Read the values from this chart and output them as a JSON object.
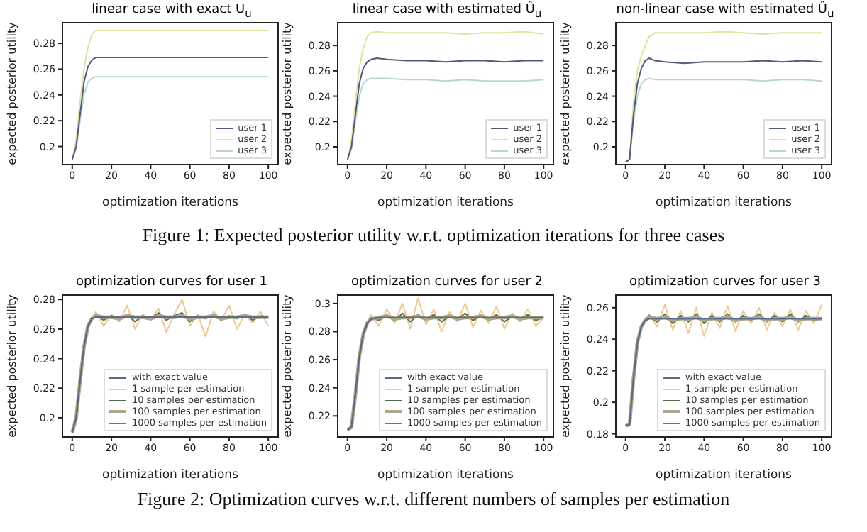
{
  "chart_data": [
    {
      "type": "line",
      "title": "linear case with exact U$_{u}$",
      "xlabel": "optimization iterations",
      "ylabel": "expected posterior utility",
      "x": [
        0,
        2,
        4,
        6,
        8,
        10,
        12,
        15,
        20,
        30,
        40,
        50,
        60,
        70,
        80,
        90,
        100
      ],
      "xlim": [
        -5,
        105
      ],
      "xticks": [
        0,
        20,
        40,
        60,
        80,
        100
      ],
      "ylim": [
        0.186,
        0.296
      ],
      "yticks": [
        0.2,
        0.22,
        0.24,
        0.26,
        0.28
      ],
      "legend": "bottom right",
      "grid": false,
      "marker": "none",
      "line_style": "solid",
      "series": [
        {
          "name": "user 1",
          "color": "#4f5a7e",
          "values": [
            0.19,
            0.2,
            0.225,
            0.25,
            0.262,
            0.267,
            0.269,
            0.269,
            0.269,
            0.269,
            0.269,
            0.269,
            0.269,
            0.269,
            0.269,
            0.269,
            0.269
          ]
        },
        {
          "name": "user 2",
          "color": "#e4e0a0",
          "values": [
            0.19,
            0.205,
            0.235,
            0.26,
            0.277,
            0.287,
            0.29,
            0.29,
            0.29,
            0.29,
            0.29,
            0.29,
            0.29,
            0.29,
            0.29,
            0.29,
            0.29
          ]
        },
        {
          "name": "user 3",
          "color": "#b9d6cf",
          "values": [
            0.19,
            0.198,
            0.22,
            0.24,
            0.25,
            0.253,
            0.254,
            0.254,
            0.254,
            0.254,
            0.254,
            0.254,
            0.254,
            0.254,
            0.254,
            0.254,
            0.254
          ]
        }
      ]
    },
    {
      "type": "line",
      "title": "linear case with estimated Û$_{u}$",
      "xlabel": "optimization iterations",
      "ylabel": "expected posterior utility",
      "x": [
        0,
        2,
        4,
        6,
        8,
        10,
        12,
        15,
        20,
        30,
        40,
        50,
        60,
        70,
        80,
        90,
        100
      ],
      "xlim": [
        -5,
        105
      ],
      "xticks": [
        0,
        20,
        40,
        60,
        80,
        100
      ],
      "ylim": [
        0.186,
        0.298
      ],
      "yticks": [
        0.2,
        0.22,
        0.24,
        0.26,
        0.28
      ],
      "legend": "bottom right",
      "grid": false,
      "marker": "none",
      "line_style": "solid",
      "annotations": [
        "Figure 1: Expected posterior utility w.r.t. optimization iterations for three cases"
      ],
      "series": [
        {
          "name": "user 1",
          "color": "#4f5a7e",
          "values": [
            0.19,
            0.2,
            0.225,
            0.25,
            0.262,
            0.267,
            0.269,
            0.27,
            0.269,
            0.268,
            0.268,
            0.267,
            0.268,
            0.268,
            0.267,
            0.268,
            0.268
          ]
        },
        {
          "name": "user 2",
          "color": "#e4e0a0",
          "values": [
            0.19,
            0.205,
            0.235,
            0.262,
            0.278,
            0.287,
            0.29,
            0.291,
            0.29,
            0.29,
            0.29,
            0.29,
            0.289,
            0.29,
            0.29,
            0.291,
            0.289
          ]
        },
        {
          "name": "user 3",
          "color": "#b9d6cf",
          "values": [
            0.19,
            0.198,
            0.22,
            0.24,
            0.25,
            0.253,
            0.254,
            0.254,
            0.254,
            0.253,
            0.253,
            0.252,
            0.253,
            0.252,
            0.252,
            0.252,
            0.253
          ]
        }
      ]
    },
    {
      "type": "line",
      "title": "non-linear case with estimated Û$_{u}$",
      "xlabel": "optimization iterations",
      "ylabel": "expected posterior utility",
      "x": [
        0,
        2,
        4,
        6,
        8,
        10,
        12,
        15,
        20,
        30,
        40,
        50,
        60,
        70,
        80,
        90,
        100
      ],
      "xlim": [
        -5,
        105
      ],
      "xticks": [
        0,
        20,
        40,
        60,
        80,
        100
      ],
      "ylim": [
        0.186,
        0.298
      ],
      "yticks": [
        0.2,
        0.22,
        0.24,
        0.26,
        0.28
      ],
      "legend": "bottom right",
      "grid": false,
      "marker": "none",
      "line_style": "solid",
      "series": [
        {
          "name": "user 1",
          "color": "#4f5a7e",
          "values": [
            0.188,
            0.19,
            0.225,
            0.25,
            0.262,
            0.268,
            0.27,
            0.268,
            0.267,
            0.266,
            0.267,
            0.267,
            0.267,
            0.268,
            0.267,
            0.268,
            0.267
          ]
        },
        {
          "name": "user 2",
          "color": "#e4e0a0",
          "values": [
            0.188,
            0.19,
            0.235,
            0.26,
            0.272,
            0.28,
            0.287,
            0.29,
            0.29,
            0.29,
            0.29,
            0.291,
            0.29,
            0.289,
            0.29,
            0.29,
            0.29
          ]
        },
        {
          "name": "user 3",
          "color": "#b9d6cf",
          "values": [
            0.188,
            0.19,
            0.22,
            0.24,
            0.25,
            0.253,
            0.254,
            0.253,
            0.253,
            0.253,
            0.253,
            0.253,
            0.253,
            0.252,
            0.253,
            0.253,
            0.252
          ]
        }
      ]
    },
    {
      "type": "line",
      "title": "optimization curves for user 1",
      "xlabel": "optimization iterations",
      "ylabel": "expected posterior utility",
      "x": [
        0,
        2,
        4,
        6,
        8,
        10,
        12,
        16,
        20,
        24,
        28,
        32,
        36,
        40,
        44,
        48,
        52,
        56,
        60,
        64,
        68,
        72,
        76,
        80,
        84,
        88,
        92,
        96,
        100
      ],
      "xlim": [
        -5,
        105
      ],
      "xticks": [
        0,
        20,
        40,
        60,
        80,
        100
      ],
      "ylim": [
        0.187,
        0.283
      ],
      "yticks": [
        0.2,
        0.22,
        0.24,
        0.26,
        0.28
      ],
      "legend": "bottom right",
      "grid": false,
      "marker": "none",
      "line_style": "solid",
      "series": [
        {
          "name": "with exact value",
          "color": "#5a6a8a",
          "values": [
            0.19,
            0.2,
            0.225,
            0.248,
            0.262,
            0.267,
            0.268,
            0.268,
            0.268,
            0.268,
            0.268,
            0.268,
            0.268,
            0.268,
            0.268,
            0.268,
            0.268,
            0.268,
            0.268,
            0.268,
            0.268,
            0.268,
            0.268,
            0.268,
            0.268,
            0.268,
            0.268,
            0.268,
            0.268
          ]
        },
        {
          "name": "1 sample per estimation",
          "color": "#f0c890",
          "values": [
            0.19,
            0.2,
            0.225,
            0.248,
            0.262,
            0.267,
            0.272,
            0.262,
            0.27,
            0.265,
            0.276,
            0.26,
            0.27,
            0.266,
            0.274,
            0.258,
            0.27,
            0.28,
            0.262,
            0.27,
            0.255,
            0.272,
            0.266,
            0.276,
            0.26,
            0.27,
            0.264,
            0.272,
            0.262
          ]
        },
        {
          "name": "10 samples per estimation",
          "color": "#4f6e50",
          "values": [
            0.19,
            0.2,
            0.225,
            0.248,
            0.262,
            0.267,
            0.27,
            0.266,
            0.269,
            0.267,
            0.27,
            0.265,
            0.269,
            0.267,
            0.271,
            0.266,
            0.269,
            0.271,
            0.265,
            0.269,
            0.267,
            0.27,
            0.266,
            0.269,
            0.267,
            0.27,
            0.266,
            0.269,
            0.268
          ]
        },
        {
          "name": "100 samples per estimation",
          "color": "#a8a88a",
          "values": [
            0.19,
            0.2,
            0.225,
            0.248,
            0.262,
            0.267,
            0.269,
            0.268,
            0.268,
            0.267,
            0.269,
            0.268,
            0.268,
            0.267,
            0.269,
            0.268,
            0.268,
            0.269,
            0.267,
            0.268,
            0.268,
            0.269,
            0.267,
            0.268,
            0.268,
            0.269,
            0.268,
            0.268,
            0.268
          ]
        },
        {
          "name": "1000 samples per estimation",
          "color": "#8a6a6a",
          "values": [
            0.19,
            0.2,
            0.225,
            0.248,
            0.262,
            0.267,
            0.268,
            0.268,
            0.268,
            0.268,
            0.268,
            0.268,
            0.268,
            0.268,
            0.268,
            0.268,
            0.268,
            0.268,
            0.268,
            0.268,
            0.268,
            0.268,
            0.268,
            0.268,
            0.268,
            0.268,
            0.268,
            0.268,
            0.268
          ]
        }
      ]
    },
    {
      "type": "line",
      "title": "optimization curves for user 2",
      "xlabel": "optimization iterations",
      "ylabel": "expected posterior utility",
      "x": [
        0,
        2,
        4,
        6,
        8,
        10,
        12,
        16,
        20,
        24,
        28,
        32,
        36,
        40,
        44,
        48,
        52,
        56,
        60,
        64,
        68,
        72,
        76,
        80,
        84,
        88,
        92,
        96,
        100
      ],
      "xlim": [
        -5,
        105
      ],
      "xticks": [
        0,
        20,
        40,
        60,
        80,
        100
      ],
      "ylim": [
        0.205,
        0.306
      ],
      "yticks": [
        0.22,
        0.24,
        0.26,
        0.28,
        0.3
      ],
      "legend": "bottom right",
      "grid": false,
      "marker": "none",
      "line_style": "solid",
      "annotations": [
        "Figure 2: Optimization curves w.r.t. different numbers of samples per estimation"
      ],
      "series": [
        {
          "name": "with exact value",
          "color": "#5a6a8a",
          "values": [
            0.21,
            0.212,
            0.235,
            0.262,
            0.278,
            0.286,
            0.289,
            0.29,
            0.29,
            0.29,
            0.29,
            0.29,
            0.29,
            0.29,
            0.29,
            0.29,
            0.29,
            0.29,
            0.29,
            0.29,
            0.29,
            0.29,
            0.29,
            0.29,
            0.29,
            0.29,
            0.29,
            0.29,
            0.29
          ]
        },
        {
          "name": "1 sample per estimation",
          "color": "#f0c890",
          "values": [
            0.21,
            0.212,
            0.235,
            0.262,
            0.278,
            0.286,
            0.292,
            0.284,
            0.296,
            0.286,
            0.3,
            0.282,
            0.304,
            0.285,
            0.296,
            0.28,
            0.294,
            0.287,
            0.3,
            0.283,
            0.295,
            0.286,
            0.298,
            0.282,
            0.293,
            0.287,
            0.296,
            0.284,
            0.29
          ]
        },
        {
          "name": "10 samples per estimation",
          "color": "#4f6e50",
          "values": [
            0.21,
            0.212,
            0.235,
            0.262,
            0.278,
            0.286,
            0.29,
            0.288,
            0.292,
            0.288,
            0.293,
            0.287,
            0.292,
            0.289,
            0.292,
            0.287,
            0.291,
            0.289,
            0.293,
            0.288,
            0.291,
            0.289,
            0.292,
            0.287,
            0.291,
            0.289,
            0.292,
            0.288,
            0.29
          ]
        },
        {
          "name": "100 samples per estimation",
          "color": "#a8a88a",
          "values": [
            0.21,
            0.212,
            0.235,
            0.262,
            0.278,
            0.286,
            0.289,
            0.29,
            0.291,
            0.289,
            0.29,
            0.29,
            0.291,
            0.289,
            0.29,
            0.29,
            0.291,
            0.289,
            0.29,
            0.29,
            0.291,
            0.289,
            0.29,
            0.29,
            0.291,
            0.289,
            0.29,
            0.29,
            0.29
          ]
        },
        {
          "name": "1000 samples per estimation",
          "color": "#8a6a6a",
          "values": [
            0.21,
            0.212,
            0.235,
            0.262,
            0.278,
            0.286,
            0.289,
            0.29,
            0.29,
            0.29,
            0.29,
            0.29,
            0.29,
            0.29,
            0.29,
            0.29,
            0.29,
            0.29,
            0.29,
            0.29,
            0.29,
            0.29,
            0.29,
            0.29,
            0.29,
            0.29,
            0.29,
            0.29,
            0.29
          ]
        }
      ]
    },
    {
      "type": "line",
      "title": "optimization curves for user 3",
      "xlabel": "optimization iterations",
      "ylabel": "expected posterior utility",
      "x": [
        0,
        2,
        4,
        6,
        8,
        10,
        12,
        16,
        20,
        24,
        28,
        32,
        36,
        40,
        44,
        48,
        52,
        56,
        60,
        64,
        68,
        72,
        76,
        80,
        84,
        88,
        92,
        96,
        100
      ],
      "xlim": [
        -5,
        105
      ],
      "xticks": [
        0,
        20,
        40,
        60,
        80,
        100
      ],
      "ylim": [
        0.178,
        0.268
      ],
      "yticks": [
        0.18,
        0.2,
        0.22,
        0.24,
        0.26
      ],
      "legend": "bottom right",
      "grid": false,
      "marker": "none",
      "line_style": "solid",
      "series": [
        {
          "name": "with exact value",
          "color": "#5a6a8a",
          "values": [
            0.185,
            0.186,
            0.215,
            0.238,
            0.248,
            0.252,
            0.253,
            0.253,
            0.253,
            0.253,
            0.253,
            0.253,
            0.253,
            0.253,
            0.253,
            0.253,
            0.253,
            0.253,
            0.253,
            0.253,
            0.253,
            0.253,
            0.253,
            0.253,
            0.253,
            0.253,
            0.253,
            0.253,
            0.253
          ]
        },
        {
          "name": "1 sample per estimation",
          "color": "#f0c890",
          "values": [
            0.185,
            0.186,
            0.215,
            0.238,
            0.248,
            0.252,
            0.256,
            0.248,
            0.262,
            0.246,
            0.258,
            0.244,
            0.26,
            0.242,
            0.257,
            0.247,
            0.261,
            0.245,
            0.258,
            0.25,
            0.26,
            0.246,
            0.257,
            0.248,
            0.259,
            0.246,
            0.258,
            0.25,
            0.262
          ]
        },
        {
          "name": "10 samples per estimation",
          "color": "#4f6e50",
          "values": [
            0.185,
            0.186,
            0.215,
            0.238,
            0.248,
            0.252,
            0.255,
            0.251,
            0.256,
            0.25,
            0.255,
            0.251,
            0.256,
            0.25,
            0.255,
            0.251,
            0.256,
            0.251,
            0.255,
            0.252,
            0.256,
            0.251,
            0.255,
            0.251,
            0.256,
            0.251,
            0.255,
            0.252,
            0.253
          ]
        },
        {
          "name": "100 samples per estimation",
          "color": "#a8a88a",
          "values": [
            0.185,
            0.186,
            0.215,
            0.238,
            0.248,
            0.252,
            0.254,
            0.253,
            0.254,
            0.252,
            0.253,
            0.253,
            0.254,
            0.252,
            0.253,
            0.253,
            0.254,
            0.252,
            0.253,
            0.253,
            0.254,
            0.252,
            0.253,
            0.253,
            0.254,
            0.252,
            0.253,
            0.253,
            0.253
          ]
        },
        {
          "name": "1000 samples per estimation",
          "color": "#8a6a6a",
          "values": [
            0.185,
            0.186,
            0.215,
            0.238,
            0.248,
            0.252,
            0.253,
            0.253,
            0.253,
            0.253,
            0.253,
            0.253,
            0.253,
            0.253,
            0.253,
            0.253,
            0.253,
            0.253,
            0.253,
            0.253,
            0.253,
            0.253,
            0.253,
            0.253,
            0.253,
            0.253,
            0.253,
            0.253,
            0.253
          ]
        }
      ]
    }
  ]
}
